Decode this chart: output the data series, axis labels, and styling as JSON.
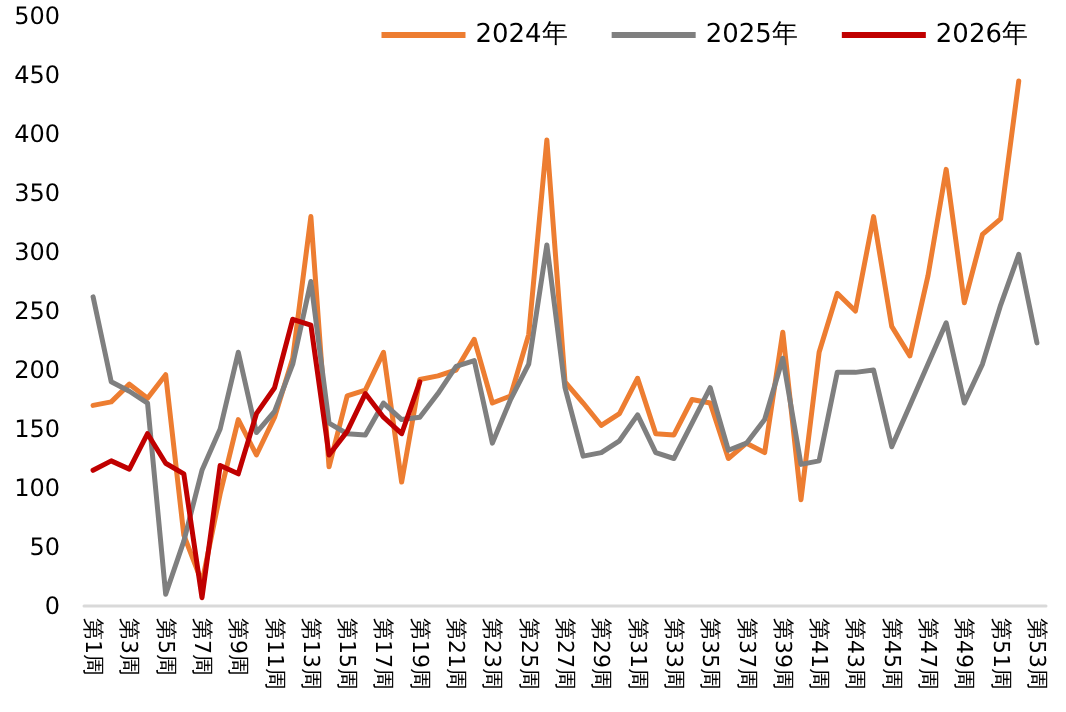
{
  "chart_data": {
    "type": "line",
    "categories": [
      "第1周",
      null,
      "第3周",
      null,
      "第5周",
      null,
      "第7周",
      null,
      "第9周",
      null,
      "第11周",
      null,
      "第13周",
      null,
      "第15周",
      null,
      "第17周",
      null,
      "第19周",
      null,
      "第21周",
      null,
      "第23周",
      null,
      "第25周",
      null,
      "第27周",
      null,
      "第29周",
      null,
      "第31周",
      null,
      "第33周",
      null,
      "第35周",
      null,
      "第37周",
      null,
      "第39周",
      null,
      "第41周",
      null,
      "第43周",
      null,
      "第45周",
      null,
      "第47周",
      null,
      "第49周",
      null,
      "第51周",
      null,
      "第53周"
    ],
    "series": [
      {
        "name": "2024年",
        "color": "#ed7d31",
        "values": [
          170,
          173,
          188,
          176,
          196,
          60,
          20,
          95,
          158,
          128,
          160,
          210,
          330,
          118,
          178,
          183,
          215,
          105,
          192,
          195,
          200,
          226,
          172,
          178,
          230,
          395,
          190,
          172,
          153,
          163,
          193,
          146,
          145,
          175,
          172,
          125,
          138,
          130,
          232,
          90,
          215,
          265,
          250,
          330,
          237,
          212,
          280,
          370,
          257,
          315,
          328,
          445,
          null
        ]
      },
      {
        "name": "2025年",
        "color": "#7f7f7f",
        "values": [
          262,
          190,
          182,
          172,
          10,
          55,
          115,
          150,
          215,
          147,
          165,
          205,
          275,
          155,
          146,
          145,
          172,
          158,
          160,
          180,
          203,
          208,
          138,
          175,
          205,
          306,
          185,
          127,
          130,
          140,
          162,
          130,
          125,
          155,
          185,
          132,
          138,
          158,
          210,
          120,
          123,
          198,
          198,
          200,
          135,
          170,
          205,
          240,
          172,
          205,
          255,
          298,
          223
        ]
      },
      {
        "name": "2026年",
        "color": "#c00000",
        "values": [
          115,
          123,
          116,
          146,
          121,
          112,
          7,
          119,
          112,
          163,
          185,
          243,
          238,
          128,
          148,
          180,
          160,
          146,
          190,
          null,
          null,
          null,
          null,
          null,
          null,
          null,
          null,
          null,
          null,
          null,
          null,
          null,
          null,
          null,
          null,
          null,
          null,
          null,
          null,
          null,
          null,
          null,
          null,
          null,
          null,
          null,
          null,
          null,
          null,
          null,
          null,
          null,
          null
        ]
      }
    ],
    "ylim": [
      0,
      500
    ],
    "yticks": [
      0,
      50,
      100,
      150,
      200,
      250,
      300,
      350,
      400,
      450,
      500
    ],
    "grid": false,
    "legend": "top right",
    "marker": "none",
    "line_style": "solid"
  }
}
